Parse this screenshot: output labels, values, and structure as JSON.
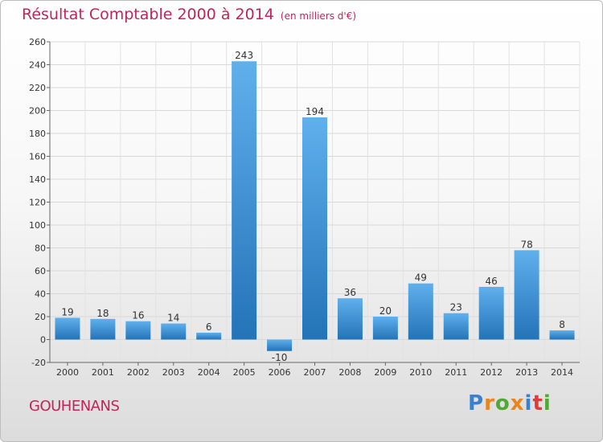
{
  "chart_data": {
    "type": "bar",
    "title": "Résultat Comptable 2000 à 2014",
    "subtitle": "(en milliers d'€)",
    "categories": [
      "2000",
      "2001",
      "2002",
      "2003",
      "2004",
      "2005",
      "2006",
      "2007",
      "2008",
      "2009",
      "2010",
      "2011",
      "2012",
      "2013",
      "2014"
    ],
    "values": [
      19,
      18,
      16,
      14,
      6,
      243,
      -10,
      194,
      36,
      20,
      49,
      23,
      46,
      78,
      8
    ],
    "data_labels": [
      "19",
      "18",
      "16",
      "14",
      "6",
      "243",
      "-10",
      "194",
      "36",
      "20",
      "49",
      "23",
      "46",
      "78",
      "8"
    ],
    "ylim": [
      -20,
      260
    ],
    "yticks": [
      -20,
      0,
      20,
      40,
      60,
      80,
      100,
      120,
      140,
      160,
      180,
      200,
      220,
      240,
      260
    ],
    "xlabel": "",
    "ylabel": "",
    "grid": true,
    "bar_color": "#3a8fd6"
  },
  "footer": {
    "town": "GOUHENANS",
    "logo": {
      "text": "Proxiti",
      "letter_colors": [
        "#3a7fd0",
        "#e8851f",
        "#52a832",
        "#e8851f",
        "#3a7fd0",
        "#e03a3a",
        "#52a832"
      ]
    }
  }
}
